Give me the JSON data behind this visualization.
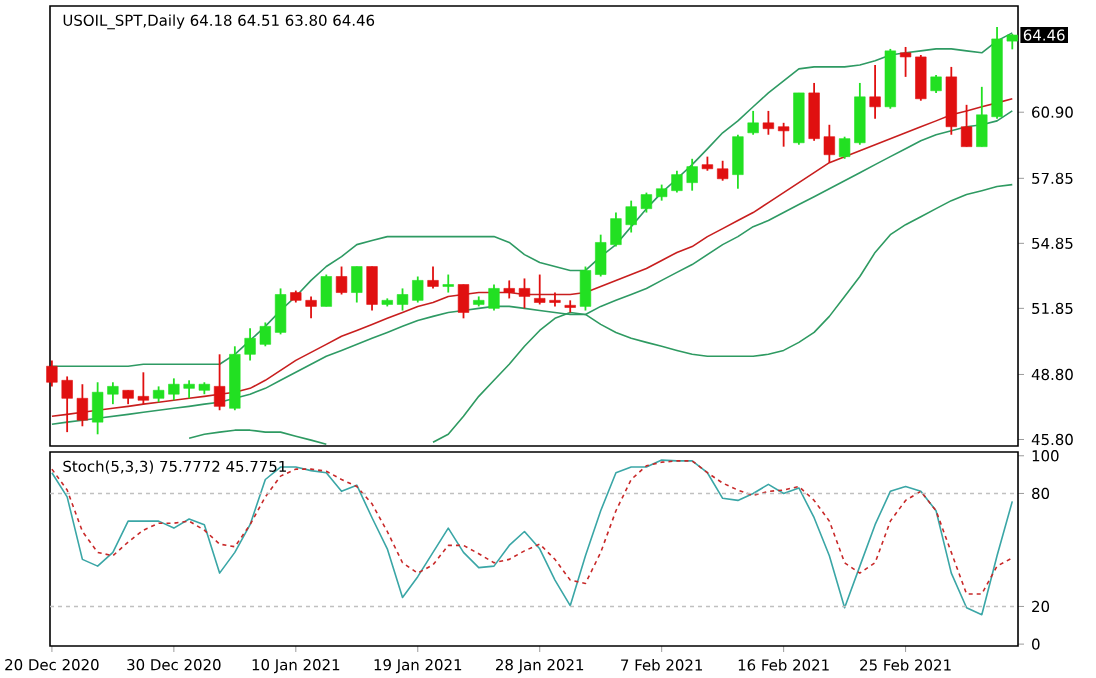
{
  "chart_data": [
    {
      "type": "candlestick",
      "title": "USOIL_SPT,Daily  64.18 64.51 63.80 64.46",
      "tick_labels": "y",
      "categories": [
        null,
        null,
        null,
        null,
        null,
        null,
        null,
        null,
        null,
        null,
        null,
        null,
        null,
        null,
        null,
        null,
        null,
        null,
        null,
        null,
        null,
        null,
        null,
        null,
        null,
        null,
        null,
        null,
        null,
        null,
        null,
        null,
        null,
        null,
        null,
        null,
        null,
        null,
        null,
        null,
        null,
        null,
        null,
        null,
        null,
        null,
        null,
        null,
        null,
        null,
        null,
        null,
        null,
        null,
        null,
        null,
        null,
        null,
        null,
        null,
        null,
        null,
        null,
        null
      ],
      "ohlc": [
        [
          49.18,
          49.45,
          48.25,
          48.44
        ],
        [
          48.53,
          48.71,
          46.14,
          47.7
        ],
        [
          47.7,
          48.35,
          46.41,
          46.69
        ],
        [
          46.6,
          48.44,
          46.04,
          47.98
        ],
        [
          47.89,
          48.44,
          47.43,
          48.25
        ],
        [
          48.07,
          48.07,
          47.43,
          47.7
        ],
        [
          47.79,
          48.9,
          47.43,
          47.61
        ],
        [
          47.7,
          48.25,
          47.52,
          48.07
        ],
        [
          47.89,
          48.62,
          47.61,
          48.35
        ],
        [
          48.16,
          48.53,
          47.7,
          48.35
        ],
        [
          48.07,
          48.44,
          47.89,
          48.35
        ],
        [
          48.25,
          49.73,
          47.15,
          47.33
        ],
        [
          47.24,
          50.1,
          47.15,
          49.73
        ],
        [
          49.73,
          50.93,
          49.45,
          50.47
        ],
        [
          50.19,
          51.2,
          50.1,
          51.02
        ],
        [
          50.74,
          52.77,
          50.65,
          52.49
        ],
        [
          52.58,
          52.67,
          52.12,
          52.22
        ],
        [
          52.22,
          52.4,
          51.39,
          51.94
        ],
        [
          51.94,
          53.41,
          51.94,
          53.32
        ],
        [
          53.32,
          53.78,
          52.49,
          52.58
        ],
        [
          52.58,
          53.78,
          52.12,
          53.78
        ],
        [
          53.78,
          53.78,
          51.75,
          52.03
        ],
        [
          52.03,
          52.31,
          51.94,
          52.22
        ],
        [
          52.03,
          52.77,
          51.75,
          52.49
        ],
        [
          52.22,
          53.32,
          52.12,
          53.14
        ],
        [
          53.14,
          53.78,
          52.77,
          52.86
        ],
        [
          52.86,
          53.41,
          52.58,
          52.95
        ],
        [
          52.95,
          52.95,
          51.39,
          51.66
        ],
        [
          52.03,
          52.4,
          51.94,
          52.22
        ],
        [
          51.85,
          52.95,
          51.75,
          52.77
        ],
        [
          52.77,
          53.14,
          52.31,
          52.58
        ],
        [
          52.77,
          53.23,
          51.85,
          52.4
        ],
        [
          52.31,
          53.41,
          52.03,
          52.12
        ],
        [
          52.22,
          52.58,
          51.94,
          52.12
        ],
        [
          51.99,
          52.22,
          51.66,
          51.89
        ],
        [
          51.94,
          53.78,
          51.75,
          53.6
        ],
        [
          53.41,
          55.25,
          53.32,
          54.89
        ],
        [
          54.79,
          56.27,
          54.7,
          55.99
        ],
        [
          55.71,
          56.82,
          55.35,
          56.54
        ],
        [
          56.45,
          57.19,
          56.27,
          57.1
        ],
        [
          57.0,
          57.56,
          56.82,
          57.37
        ],
        [
          57.28,
          58.2,
          57.19,
          58.02
        ],
        [
          57.65,
          58.75,
          57.28,
          58.39
        ],
        [
          58.48,
          58.85,
          58.2,
          58.29
        ],
        [
          58.29,
          58.66,
          57.74,
          57.83
        ],
        [
          58.02,
          59.86,
          57.37,
          59.77
        ],
        [
          59.95,
          60.96,
          59.86,
          60.41
        ],
        [
          60.41,
          60.96,
          59.86,
          60.14
        ],
        [
          60.23,
          60.41,
          59.31,
          60.04
        ],
        [
          59.49,
          61.79,
          59.4,
          61.79
        ],
        [
          61.79,
          62.25,
          59.58,
          59.68
        ],
        [
          59.77,
          60.32,
          58.57,
          58.94
        ],
        [
          58.85,
          59.77,
          58.75,
          59.68
        ],
        [
          59.49,
          62.25,
          59.4,
          61.61
        ],
        [
          61.61,
          63.08,
          60.6,
          61.15
        ],
        [
          61.15,
          63.82,
          61.06,
          63.73
        ],
        [
          63.64,
          63.91,
          62.53,
          63.45
        ],
        [
          63.45,
          63.54,
          61.43,
          61.52
        ],
        [
          61.89,
          62.62,
          61.79,
          62.53
        ],
        [
          62.53,
          62.99,
          59.86,
          60.23
        ],
        [
          60.23,
          61.24,
          59.31,
          59.31
        ],
        [
          59.31,
          62.07,
          59.31,
          60.78
        ],
        [
          60.69,
          64.83,
          60.6,
          64.28
        ],
        [
          64.18,
          64.51,
          63.8,
          64.46
        ]
      ],
      "colors": [
        "#e01010",
        "#e01010",
        "#e01010",
        "#22e022",
        "#22e022",
        "#e01010",
        "#e01010",
        "#22e022",
        "#22e022",
        "#22e022",
        "#22e022",
        "#e01010",
        "#22e022",
        "#22e022",
        "#22e022",
        "#22e022",
        "#e01010",
        "#e01010",
        "#22e022",
        "#e01010",
        "#22e022",
        "#e01010",
        "#22e022",
        "#22e022",
        "#22e022",
        "#e01010",
        "#22e022",
        "#e01010",
        "#22e022",
        "#22e022",
        "#e01010",
        "#e01010",
        "#e01010",
        "#e01010",
        "#e01010",
        "#22e022",
        "#22e022",
        "#22e022",
        "#22e022",
        "#22e022",
        "#22e022",
        "#22e022",
        "#22e022",
        "#e01010",
        "#e01010",
        "#22e022",
        "#22e022",
        "#e01010",
        "#e01010",
        "#22e022",
        "#e01010",
        "#e01010",
        "#22e022",
        "#22e022",
        "#e01010",
        "#22e022",
        "#e01010",
        "#e01010",
        "#22e022",
        "#e01010",
        "#e01010",
        "#22e022",
        "#22e022",
        "#22e022"
      ],
      "series": [
        {
          "type": "line",
          "color": "#2e9a63",
          "values": [
            49.18,
            49.18,
            49.18,
            49.18,
            49.18,
            49.18,
            49.27,
            49.27,
            49.27,
            49.27,
            49.27,
            49.27,
            49.73,
            50.37,
            51.02,
            51.75,
            52.4,
            53.14,
            53.78,
            54.24,
            54.79,
            54.98,
            55.16,
            55.16,
            55.16,
            55.16,
            55.16,
            55.16,
            55.16,
            55.16,
            54.89,
            54.33,
            53.97,
            53.78,
            53.6,
            53.6,
            54.24,
            54.79,
            55.62,
            56.45,
            57.19,
            57.83,
            58.48,
            59.21,
            59.95,
            60.5,
            61.15,
            61.79,
            62.35,
            62.9,
            62.99,
            62.99,
            62.99,
            63.08,
            63.27,
            63.54,
            63.64,
            63.73,
            63.82,
            63.82,
            63.73,
            63.64,
            64.19,
            64.56
          ]
        },
        {
          "type": "line",
          "color": "#c81e1e",
          "values": [
            46.87,
            46.96,
            47.06,
            47.15,
            47.24,
            47.33,
            47.43,
            47.52,
            47.61,
            47.7,
            47.79,
            47.89,
            47.98,
            48.16,
            48.53,
            48.99,
            49.45,
            49.82,
            50.19,
            50.56,
            50.83,
            51.11,
            51.39,
            51.66,
            51.94,
            52.12,
            52.4,
            52.49,
            52.58,
            52.58,
            52.58,
            52.49,
            52.49,
            52.49,
            52.49,
            52.58,
            52.86,
            53.14,
            53.41,
            53.69,
            54.06,
            54.43,
            54.7,
            55.16,
            55.53,
            55.9,
            56.27,
            56.73,
            57.19,
            57.65,
            58.11,
            58.57,
            58.85,
            59.12,
            59.4,
            59.67,
            59.95,
            60.23,
            60.5,
            60.78,
            60.96,
            61.15,
            61.33,
            61.52
          ]
        },
        {
          "type": "line",
          "color": "#2e9a64",
          "values": [
            46.5,
            46.6,
            46.69,
            46.78,
            46.87,
            46.96,
            47.06,
            47.15,
            47.24,
            47.33,
            47.43,
            47.52,
            47.7,
            47.89,
            48.16,
            48.53,
            48.9,
            49.27,
            49.64,
            49.91,
            50.19,
            50.47,
            50.74,
            51.02,
            51.29,
            51.48,
            51.66,
            51.75,
            51.85,
            51.94,
            51.94,
            51.85,
            51.75,
            51.66,
            51.57,
            51.57,
            51.94,
            52.22,
            52.49,
            52.77,
            53.14,
            53.51,
            53.87,
            54.33,
            54.79,
            55.16,
            55.62,
            55.9,
            56.27,
            56.64,
            57.0,
            57.37,
            57.74,
            58.11,
            58.48,
            58.85,
            59.21,
            59.58,
            59.86,
            60.04,
            60.23,
            60.32,
            60.5,
            60.96
          ]
        },
        {
          "type": "line",
          "color": "#2e9a62",
          "values": [
            null,
            null,
            null,
            null,
            null,
            null,
            null,
            null,
            null,
            45.86,
            46.04,
            46.14,
            46.23,
            46.23,
            46.14,
            46.14,
            45.95,
            45.77,
            45.58,
            null,
            null,
            null,
            null,
            null,
            null,
            null,
            null,
            null,
            null,
            null,
            null,
            null,
            null,
            null,
            null,
            null,
            null,
            null,
            null,
            null,
            null,
            null,
            null,
            null,
            null,
            null,
            null,
            null,
            null,
            null,
            null,
            null,
            null,
            null,
            null,
            null,
            null,
            null,
            null,
            null,
            null,
            null,
            null,
            null
          ]
        },
        {
          "type": "line",
          "color": "#2e9a61",
          "values": [
            null,
            null,
            null,
            null,
            null,
            null,
            null,
            null,
            null,
            null,
            null,
            null,
            null,
            null,
            null,
            null,
            null,
            null,
            null,
            null,
            null,
            null,
            null,
            null,
            null,
            45.67,
            46.04,
            46.87,
            47.79,
            48.53,
            49.27,
            50.1,
            50.83,
            51.39,
            51.66,
            51.57,
            51.11,
            50.74,
            50.47,
            50.28,
            50.1,
            49.91,
            49.73,
            49.64,
            49.64,
            49.64,
            49.64,
            49.73,
            49.91,
            50.28,
            50.74,
            51.48,
            52.4,
            53.32,
            54.43,
            55.25,
            55.71,
            56.08,
            56.45,
            56.82,
            57.1,
            57.28,
            57.47,
            57.56
          ]
        }
      ],
      "ylim": [
        45.5,
        65.8
      ],
      "yticks": [
        {
          "value": 45.8,
          "label": "45.80"
        },
        {
          "value": 48.8,
          "label": "48.80"
        },
        51.85,
        54.85,
        57.85,
        {
          "value": 60.9,
          "label": "60.90"
        }
      ],
      "annotations": [
        {
          "text": "64.46",
          "y": 64.46
        }
      ]
    },
    {
      "type": "line",
      "title": "Stoch(5,3,3) 75.7772 45.7751",
      "categories": [
        "20 Dec 2020",
        null,
        null,
        null,
        null,
        null,
        null,
        null,
        "30 Dec 2020",
        null,
        null,
        null,
        null,
        null,
        null,
        null,
        "10 Jan 2021",
        null,
        null,
        null,
        null,
        null,
        null,
        null,
        "19 Jan 2021",
        null,
        null,
        null,
        null,
        null,
        null,
        null,
        "28 Jan 2021",
        null,
        null,
        null,
        null,
        null,
        null,
        null,
        "7 Feb 2021",
        null,
        null,
        null,
        null,
        null,
        null,
        null,
        "16 Feb 2021",
        null,
        null,
        null,
        null,
        null,
        null,
        null,
        "25 Feb 2021",
        null,
        null,
        null,
        null,
        null,
        null,
        null
      ],
      "series": [
        {
          "color": "#3aa6a6",
          "line_style": "solid",
          "values": [
            91.0,
            78.2,
            45.0,
            41.4,
            48.7,
            65.3,
            65.3,
            65.3,
            61.6,
            66.4,
            63.4,
            37.7,
            48.7,
            63.4,
            87.4,
            94.0,
            94.0,
            92.1,
            91.0,
            81.1,
            84.4,
            67.1,
            50.6,
            24.8,
            35.8,
            48.7,
            61.6,
            48.7,
            40.6,
            41.4,
            52.4,
            59.8,
            50.6,
            34.0,
            20.4,
            46.9,
            70.8,
            91.0,
            94.0,
            94.0,
            97.7,
            97.3,
            97.3,
            91.0,
            77.4,
            76.3,
            80.0,
            84.8,
            80.0,
            82.9,
            67.1,
            46.9,
            19.3,
            41.4,
            63.4,
            81.1,
            83.7,
            81.1,
            70.8,
            37.7,
            19.3,
            15.6,
            46.9,
            75.78
          ]
        },
        {
          "color": "#c82828",
          "line_style": "dashed",
          "values": [
            92.9,
            81.8,
            59.8,
            48.7,
            46.9,
            54.2,
            60.5,
            64.2,
            64.2,
            65.3,
            60.5,
            53.1,
            51.7,
            63.4,
            78.2,
            89.2,
            92.9,
            92.9,
            91.8,
            87.4,
            83.7,
            74.5,
            59.8,
            43.2,
            37.7,
            42.1,
            52.4,
            52.4,
            48.0,
            43.2,
            45.0,
            49.5,
            53.1,
            45.0,
            34.0,
            32.2,
            48.7,
            70.8,
            87.4,
            94.7,
            96.6,
            97.3,
            97.3,
            91.0,
            85.5,
            81.8,
            78.9,
            81.1,
            81.8,
            83.7,
            76.3,
            65.3,
            43.2,
            37.7,
            43.2,
            65.3,
            76.3,
            81.1,
            70.8,
            48.7,
            26.6,
            26.6,
            41.4,
            45.78
          ]
        }
      ],
      "ylim": [
        -1,
        102
      ],
      "yticks": [
        0,
        20,
        80,
        100
      ],
      "ref_lines": [
        {
          "axis": "y",
          "value": 20,
          "color": "#c0c0c0",
          "line_style": "dashed"
        },
        {
          "axis": "y",
          "value": 80,
          "color": "#c0c0c0",
          "line_style": "dashed"
        }
      ]
    }
  ]
}
